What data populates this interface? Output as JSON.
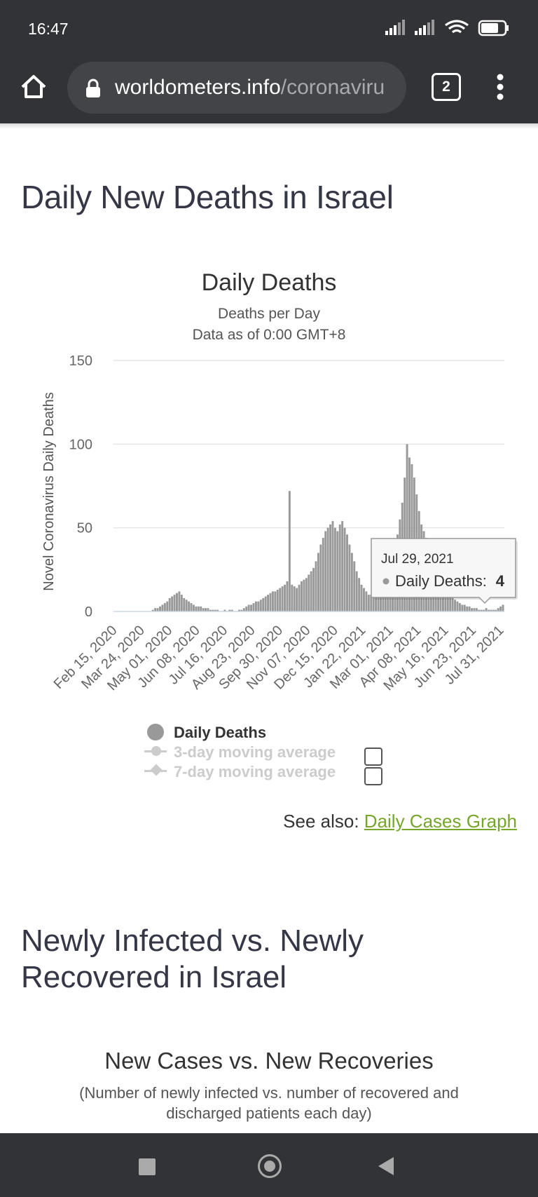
{
  "status_bar": {
    "time": "16:47"
  },
  "browser": {
    "url_domain": "worldometers.info",
    "url_path": "/coronaviru",
    "tab_count": "2"
  },
  "section1": {
    "title": "Daily New Deaths in Israel"
  },
  "chart": {
    "title": "Daily Deaths",
    "subtitle_line1": "Deaths per Day",
    "subtitle_line2": "Data as of 0:00 GMT+8",
    "legend": {
      "series1": "Daily Deaths",
      "series2": "3-day moving average",
      "series3": "7-day moving average"
    },
    "tooltip": {
      "date": "Jul 29, 2021",
      "label": "Daily Deaths: ",
      "value": "4"
    },
    "colors": {
      "bars": "#999999",
      "grid": "#e6e6e6",
      "axis": "#ccd6eb"
    }
  },
  "chart_data": {
    "type": "bar",
    "title": "Daily Deaths",
    "subtitle": "Deaths per Day · Data as of 0:00 GMT+8",
    "ylabel": "Novel Coronavirus Daily Deaths",
    "ylim": [
      0,
      150
    ],
    "yticks": [
      0,
      50,
      100,
      150
    ],
    "xtick_labels": [
      "Feb 15, 2020",
      "Mar 24, 2020",
      "May 01, 2020",
      "Jun 08, 2020",
      "Jul 16, 2020",
      "Aug 23, 2020",
      "Sep 30, 2020",
      "Nov 07, 2020",
      "Dec 15, 2020",
      "Jan 22, 2021",
      "Mar 01, 2021",
      "Apr 08, 2021",
      "May 16, 2021",
      "Jun 23, 2021",
      "Jul 31, 2021"
    ],
    "series": [
      {
        "name": "Daily Deaths",
        "values": [
          0,
          0,
          0,
          0,
          0,
          0,
          0,
          0,
          0,
          0,
          0,
          0,
          0,
          0,
          0,
          0,
          1,
          2,
          2,
          3,
          4,
          5,
          6,
          8,
          9,
          10,
          11,
          12,
          10,
          8,
          7,
          6,
          5,
          4,
          3,
          3,
          3,
          2,
          2,
          2,
          1,
          1,
          1,
          1,
          0,
          0,
          1,
          0,
          1,
          1,
          0,
          0,
          1,
          1,
          2,
          3,
          4,
          4,
          5,
          6,
          6,
          7,
          8,
          9,
          10,
          11,
          12,
          12,
          13,
          14,
          15,
          16,
          18,
          72,
          16,
          15,
          14,
          16,
          18,
          19,
          20,
          22,
          24,
          26,
          30,
          35,
          40,
          44,
          48,
          50,
          52,
          54,
          50,
          48,
          52,
          54,
          50,
          46,
          40,
          35,
          30,
          24,
          20,
          16,
          14,
          12,
          10,
          10,
          12,
          14,
          16,
          18,
          20,
          22,
          24,
          28,
          32,
          38,
          46,
          55,
          65,
          80,
          100,
          92,
          88,
          80,
          70,
          60,
          52,
          48,
          44,
          40,
          35,
          30,
          26,
          22,
          18,
          15,
          12,
          10,
          9,
          8,
          7,
          6,
          5,
          4,
          4,
          3,
          3,
          2,
          2,
          2,
          1,
          1,
          1,
          2,
          1,
          1,
          1,
          1,
          2,
          3,
          4
        ]
      }
    ],
    "grid": true,
    "legend_position": "bottom-center"
  },
  "see_also": {
    "prefix": "See also: ",
    "link": "Daily Cases Graph"
  },
  "section2": {
    "title": "Newly Infected vs. Newly Recovered in Israel",
    "chart_title": "New Cases vs. New Recoveries",
    "chart_subtitle": "(Number of newly infected vs. number of recovered and discharged patients each day)"
  }
}
